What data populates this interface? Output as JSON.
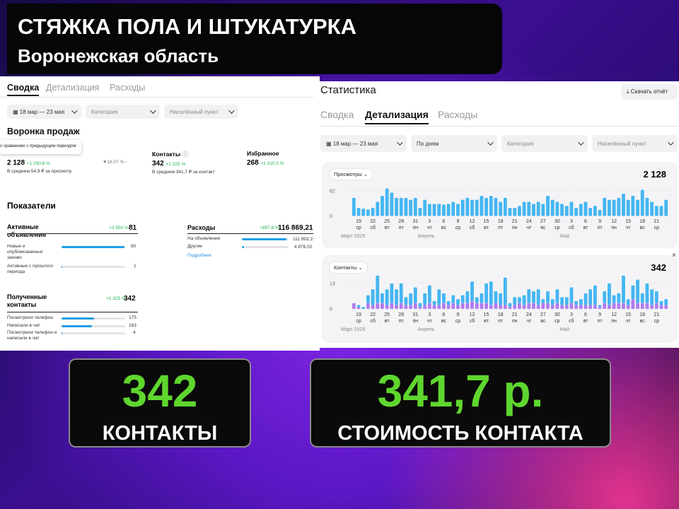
{
  "header": {
    "title": "СТЯЖКА ПОЛА И ШТУКАТУРКА",
    "subtitle": "Воронежская область"
  },
  "summary": {
    "tabs": [
      "Сводка",
      "Детализация",
      "Расходы"
    ],
    "filters": [
      "18 мар — 23 мая",
      "Категория",
      "Населённый пункт"
    ],
    "funnel_title": "Воронка продаж",
    "tooltip": "о сравнению с предыдущим периодом",
    "views": {
      "value": "2 128",
      "change": "+1 290,8 %",
      "note": "В среднем 54,9 ₽ за просмотр",
      "conversion": "16,07 %"
    },
    "contacts": {
      "label": "Контакты",
      "value": "342",
      "change": "+1 325 %",
      "note": "В среднем 341,7 ₽ за контакт"
    },
    "favorites": {
      "label": "Избранное",
      "value": "268",
      "change": "+1 310,5 %"
    },
    "indicators_title": "Показатели",
    "active_ads": {
      "label": "Активные объявления",
      "change": "+3 950 %",
      "value": 81,
      "rows": [
        {
          "label": "Новые и опубликованные заново",
          "value": 80
        },
        {
          "label": "Активные с прошлого периода",
          "value": 1
        }
      ]
    },
    "expenses": {
      "label": "Расходы",
      "change": "+897,8 %",
      "value": {
        "value": 116869.21,
        "label": "116 869,21 ₽"
      },
      "rows": [
        {
          "label": "На объявления",
          "value": {
            "value": 111993.19,
            "label": "111 993,19 ₽"
          }
        },
        {
          "label": "Другие",
          "value": {
            "value": 4876.02,
            "label": "4 876,02 ₽"
          }
        }
      ],
      "link": "Подробнее"
    },
    "received_contacts": {
      "label": "Полученные контакты",
      "change": "+1 325 %",
      "value": 342,
      "rows": [
        {
          "label": "Посмотрели телефон",
          "value": 175
        },
        {
          "label": "Написали в чат",
          "value": 163
        },
        {
          "label": "Посмотрели телефон и написали в чат",
          "value": 4
        }
      ]
    }
  },
  "stats": {
    "title": "Статистика",
    "download": "Скачать отчёт",
    "tabs": [
      "Сводка",
      "Детализация",
      "Расходы"
    ],
    "filters": [
      "18 мар — 23 мая",
      "По дням",
      "Категория",
      "Населённый пункт"
    ],
    "charts": [
      {
        "type": "bar",
        "metric": "Просмотры",
        "total": "2 128",
        "color": "#45b6f2",
        "ylim": [
          0,
          72
        ],
        "yticks": [
          0,
          62
        ],
        "categories": [
          null,
          "19",
          null,
          null,
          "22",
          null,
          null,
          "25",
          null,
          null,
          "28",
          null,
          null,
          "31",
          null,
          null,
          "3",
          null,
          null,
          "6",
          null,
          null,
          "9",
          null,
          null,
          "12",
          null,
          null,
          "15",
          null,
          null,
          "18",
          null,
          null,
          "21",
          null,
          null,
          "24",
          null,
          null,
          "27",
          null,
          null,
          "30",
          null,
          null,
          "3",
          null,
          null,
          "6",
          null,
          null,
          "9",
          null,
          null,
          "12",
          null,
          null,
          "15",
          null,
          null,
          "18",
          null,
          null,
          "21",
          null,
          null
        ],
        "weekdays": [
          null,
          "ср",
          null,
          null,
          "сб",
          null,
          null,
          "вт",
          null,
          null,
          "пт",
          null,
          null,
          "пн",
          null,
          null,
          "чт",
          null,
          null,
          "вс",
          null,
          null,
          "ср",
          null,
          null,
          "сб",
          null,
          null,
          "вт",
          null,
          null,
          "пт",
          null,
          null,
          "пн",
          null,
          null,
          "чт",
          null,
          null,
          "вс",
          null,
          null,
          "ср",
          null,
          null,
          "сб",
          null,
          null,
          "вт",
          null,
          null,
          "пт",
          null,
          null,
          "пн",
          null,
          null,
          "чт",
          null,
          null,
          "вс",
          null,
          null,
          "ср",
          null,
          null
        ],
        "months": [
          "Март 2025",
          "Апрель",
          "Май"
        ],
        "values": [
          45,
          20,
          18,
          16,
          20,
          35,
          50,
          68,
          58,
          45,
          45,
          45,
          40,
          45,
          20,
          40,
          30,
          30,
          30,
          28,
          30,
          35,
          30,
          40,
          45,
          40,
          40,
          50,
          45,
          50,
          45,
          35,
          45,
          20,
          20,
          25,
          35,
          35,
          30,
          35,
          30,
          50,
          40,
          35,
          30,
          25,
          35,
          20,
          30,
          35,
          20,
          25,
          15,
          45,
          40,
          40,
          45,
          55,
          40,
          50,
          40,
          65,
          45,
          35,
          25,
          25,
          40
        ]
      },
      {
        "type": "stacked_bar",
        "metric": "Контакты",
        "total": "342",
        "ylim": [
          0,
          20
        ],
        "yticks": [
          0,
          13
        ],
        "categories": [
          null,
          "19",
          null,
          null,
          "22",
          null,
          null,
          "25",
          null,
          null,
          "28",
          null,
          null,
          "31",
          null,
          null,
          "3",
          null,
          null,
          "6",
          null,
          null,
          "9",
          null,
          null,
          "12",
          null,
          null,
          "15",
          null,
          null,
          "18",
          null,
          null,
          "21",
          null,
          null,
          "24",
          null,
          null,
          "27",
          null,
          null,
          "30",
          null,
          null,
          "3",
          null,
          null,
          "6",
          null,
          null,
          "9",
          null,
          null,
          "12",
          null,
          null,
          "15",
          null,
          null,
          "18",
          null,
          null,
          "21",
          null,
          null
        ],
        "weekdays": [
          null,
          "ср",
          null,
          null,
          "сб",
          null,
          null,
          "вт",
          null,
          null,
          "пт",
          null,
          null,
          "пн",
          null,
          null,
          "чт",
          null,
          null,
          "вс",
          null,
          null,
          "ср",
          null,
          null,
          "сб",
          null,
          null,
          "вт",
          null,
          null,
          "пт",
          null,
          null,
          "пн",
          null,
          null,
          "чт",
          null,
          null,
          "вс",
          null,
          null,
          "ср",
          null,
          null,
          "сб",
          null,
          null,
          "вт",
          null,
          null,
          "пт",
          null,
          null,
          "пн",
          null,
          null,
          "чт",
          null,
          null,
          "вс",
          null,
          null,
          "ср",
          null,
          null
        ],
        "months": [
          "Март 2025",
          "Апрель",
          "Май"
        ],
        "series": [
          {
            "color": "#b27cf2",
            "values": [
              3,
              1,
              0,
              3,
              2,
              3,
              3,
              2,
              3,
              2,
              3,
              2,
              2,
              3,
              1,
              2,
              3,
              2,
              2,
              3,
              2,
              3,
              2,
              3,
              3,
              4,
              3,
              3,
              3,
              2,
              3,
              2,
              2,
              1,
              2,
              3,
              2,
              3,
              3,
              2,
              3,
              3,
              2,
              3,
              2,
              2,
              3,
              2,
              2,
              2,
              2,
              2,
              1,
              3,
              2,
              3,
              3,
              3,
              2,
              5,
              3,
              3,
              3,
              2,
              3,
              2,
              2
            ]
          },
          {
            "color": "#45b6f2",
            "values": [
              0,
              1,
              1,
              4,
              8,
              14,
              5,
              8,
              10,
              8,
              10,
              4,
              6,
              8,
              2,
              6,
              9,
              2,
              8,
              5,
              2,
              4,
              3,
              4,
              6,
              10,
              3,
              5,
              10,
              12,
              6,
              6,
              14,
              2,
              4,
              3,
              5,
              7,
              6,
              8,
              2,
              6,
              3,
              7,
              4,
              4,
              8,
              2,
              3,
              6,
              8,
              10,
              1,
              6,
              11,
              4,
              5,
              14,
              3,
              7,
              12,
              5,
              10,
              8,
              6,
              2,
              3
            ]
          }
        ]
      }
    ]
  },
  "highlights": [
    {
      "value": 342,
      "label": "КОНТАКТЫ"
    },
    {
      "value": "341,7 р.",
      "label": "СТОИМОСТЬ КОНТАКТА"
    }
  ]
}
